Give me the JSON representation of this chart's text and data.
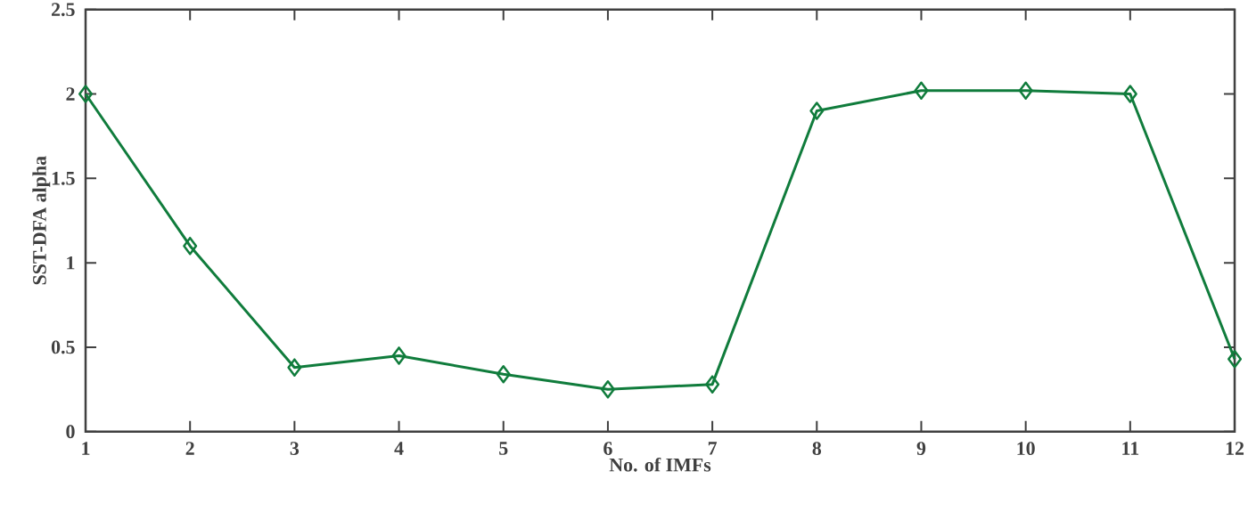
{
  "chart_data": {
    "type": "line",
    "xlabel": "No. of IMFs",
    "ylabel": "SST-DFA alpha",
    "x": [
      1,
      2,
      3,
      4,
      5,
      6,
      7,
      8,
      9,
      10,
      11,
      12
    ],
    "series": [
      {
        "color": "#107c3c",
        "values": [
          2.0,
          1.1,
          0.38,
          0.45,
          0.34,
          0.25,
          0.28,
          1.9,
          2.02,
          2.02,
          2.0,
          0.43
        ]
      }
    ],
    "xlim": [
      1,
      12
    ],
    "xticks": [
      1,
      2,
      3,
      4,
      5,
      6,
      7,
      8,
      9,
      10,
      11,
      12
    ],
    "ylim": [
      0,
      2.5
    ],
    "yticks": [
      0,
      0.5,
      1,
      1.5,
      2,
      2.5
    ],
    "marker": "diamond",
    "line_style": "solid",
    "grid": false
  }
}
